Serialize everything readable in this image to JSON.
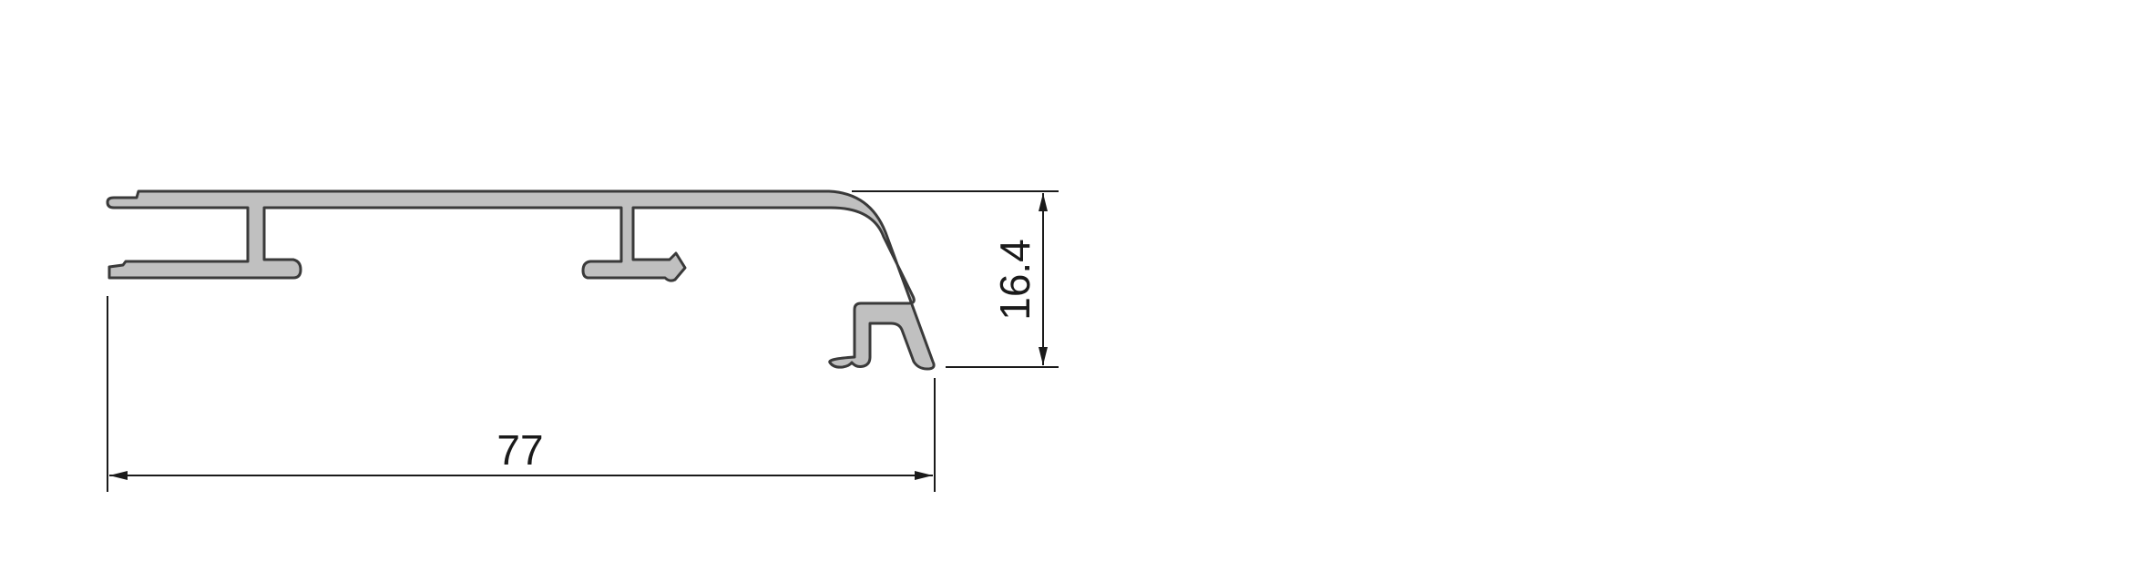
{
  "drawing": {
    "dimensions": {
      "width_label": "77",
      "height_label": "16.4"
    },
    "colors": {
      "profile_fill": "#c0c0c0",
      "profile_stroke": "#3a3a3a",
      "dimension_line": "#1a1a1a",
      "background": "#ffffff"
    }
  }
}
